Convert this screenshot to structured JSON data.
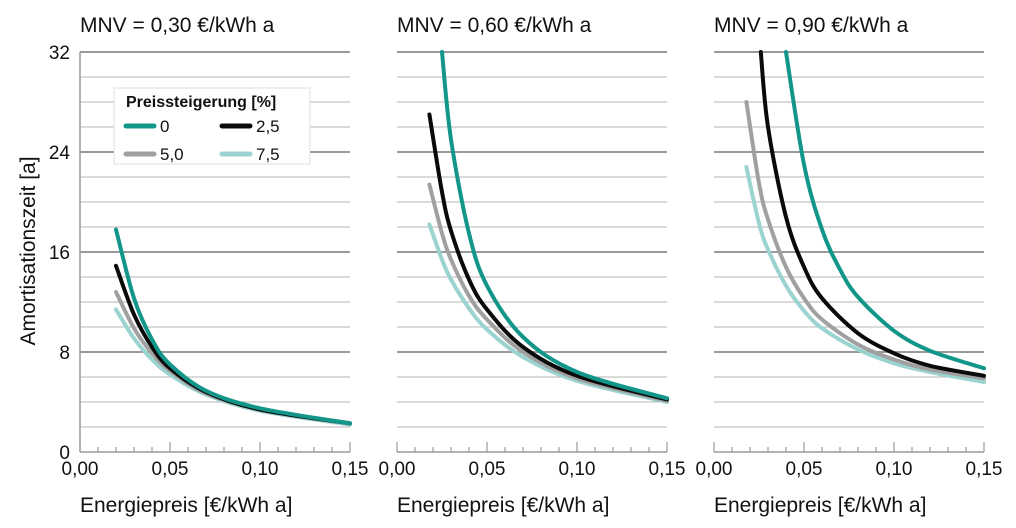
{
  "chart_data": {
    "type": "line",
    "ylabel": "Amortisationszeit [a]",
    "ylim": [
      0,
      32
    ],
    "y_ticks": [
      "0",
      "8",
      "16",
      "24",
      "32"
    ],
    "grid": true,
    "legend": {
      "title": "Preissteigerung [%]",
      "placement": "upper-left of first panel",
      "entries": [
        {
          "label": "0",
          "color": "#13968a"
        },
        {
          "label": "2,5",
          "color": "#0a0a0a"
        },
        {
          "label": "5,0",
          "color": "#a0a0a0"
        },
        {
          "label": "7,5",
          "color": "#9bd3d0"
        }
      ]
    },
    "panels": [
      {
        "title": "MNV = 0,30 €/kWh a",
        "xlabel": "Energiepreis [€/kWh a]",
        "xlim": [
          0,
          0.15
        ],
        "x_ticks": [
          "0,00",
          "0,05",
          "0,10",
          "0,15"
        ],
        "series": [
          {
            "label": "0",
            "color": "#13968a",
            "x": [
              0.02,
              0.03,
              0.04,
              0.05,
              0.07,
              0.1,
              0.15
            ],
            "y": [
              17.8,
              12.3,
              9.0,
              7.0,
              4.9,
              3.5,
              2.3
            ]
          },
          {
            "label": "2,5",
            "color": "#0a0a0a",
            "x": [
              0.02,
              0.03,
              0.04,
              0.05,
              0.07,
              0.1,
              0.15
            ],
            "y": [
              14.9,
              11.0,
              8.4,
              6.7,
              4.8,
              3.4,
              2.3
            ]
          },
          {
            "label": "5,0",
            "color": "#a0a0a0",
            "x": [
              0.02,
              0.03,
              0.04,
              0.05,
              0.07,
              0.1,
              0.15
            ],
            "y": [
              12.8,
              9.9,
              7.9,
              6.5,
              4.7,
              3.4,
              2.3
            ]
          },
          {
            "label": "7,5",
            "color": "#9bd3d0",
            "x": [
              0.02,
              0.03,
              0.04,
              0.05,
              0.07,
              0.1,
              0.15
            ],
            "y": [
              11.4,
              9.1,
              7.4,
              6.2,
              4.6,
              3.3,
              2.2
            ]
          }
        ]
      },
      {
        "title": "MNV = 0,60 €/kWh a",
        "xlabel": "Energiepreis [€/kWh a]",
        "xlim": [
          0,
          0.15
        ],
        "x_ticks": [
          "0,00",
          "0,05",
          "0,10",
          "0,15"
        ],
        "series": [
          {
            "label": "0",
            "color": "#13968a",
            "x": [
              0.025,
              0.03,
              0.04,
              0.05,
              0.07,
              0.1,
              0.15
            ],
            "y": [
              32.0,
              25.0,
              17.5,
              13.3,
              9.2,
              6.4,
              4.3
            ]
          },
          {
            "label": "2,5",
            "color": "#0a0a0a",
            "x": [
              0.018,
              0.025,
              0.03,
              0.04,
              0.05,
              0.07,
              0.1,
              0.15
            ],
            "y": [
              27.0,
              20.8,
              17.7,
              13.8,
              11.4,
              8.4,
              6.1,
              4.2
            ]
          },
          {
            "label": "5,0",
            "color": "#a0a0a0",
            "x": [
              0.018,
              0.025,
              0.03,
              0.04,
              0.05,
              0.07,
              0.1,
              0.15
            ],
            "y": [
              21.4,
              17.5,
              15.4,
              12.5,
              10.6,
              8.0,
              5.9,
              4.1
            ]
          },
          {
            "label": "7,5",
            "color": "#9bd3d0",
            "x": [
              0.018,
              0.025,
              0.03,
              0.04,
              0.05,
              0.07,
              0.1,
              0.15
            ],
            "y": [
              18.2,
              15.4,
              13.8,
              11.5,
              9.8,
              7.6,
              5.7,
              4.0
            ]
          }
        ]
      },
      {
        "title": "MNV = 0,90 €/kWh a",
        "xlabel": "Energiepreis [€/kWh a]",
        "xlim": [
          0,
          0.15
        ],
        "x_ticks": [
          "0,00",
          "0,05",
          "0,10",
          "0,15"
        ],
        "series": [
          {
            "label": "0",
            "color": "#13968a",
            "x": [
              0.04,
              0.05,
              0.06,
              0.07,
              0.08,
              0.1,
              0.12,
              0.15
            ],
            "y": [
              32.0,
              23.0,
              17.8,
              14.6,
              12.4,
              9.7,
              8.1,
              6.7
            ]
          },
          {
            "label": "2,5",
            "color": "#0a0a0a",
            "x": [
              0.026,
              0.03,
              0.04,
              0.05,
              0.06,
              0.08,
              0.1,
              0.12,
              0.15
            ],
            "y": [
              32.0,
              26.0,
              18.8,
              14.8,
              12.3,
              9.5,
              7.9,
              6.9,
              6.1
            ]
          },
          {
            "label": "5,0",
            "color": "#a0a0a0",
            "x": [
              0.018,
              0.025,
              0.03,
              0.04,
              0.05,
              0.06,
              0.08,
              0.1,
              0.12,
              0.15
            ],
            "y": [
              28.0,
              21.5,
              18.6,
              14.8,
              12.3,
              10.6,
              8.6,
              7.4,
              6.6,
              5.9
            ]
          },
          {
            "label": "7,5",
            "color": "#9bd3d0",
            "x": [
              0.018,
              0.025,
              0.03,
              0.04,
              0.05,
              0.06,
              0.08,
              0.1,
              0.12,
              0.15
            ],
            "y": [
              22.8,
              18.3,
              16.2,
              13.3,
              11.3,
              9.9,
              8.2,
              7.1,
              6.4,
              5.6
            ]
          }
        ]
      }
    ]
  }
}
